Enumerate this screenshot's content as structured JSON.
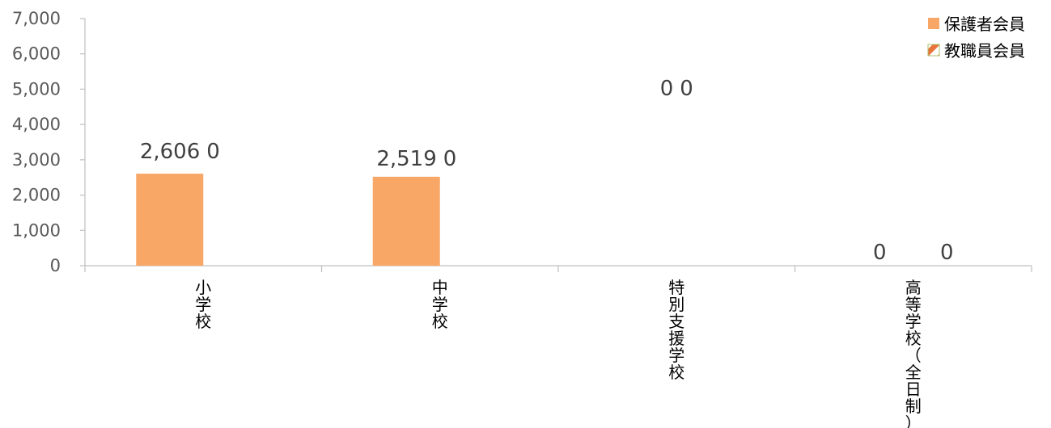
{
  "chart_data": {
    "type": "bar",
    "categories": [
      "小学校",
      "中学校",
      "特別支援学校",
      "高等学校（全日制）"
    ],
    "series": [
      {
        "name": "保護者会員",
        "values": [
          2606,
          2519,
          0,
          0
        ],
        "color": "#F9A766",
        "pattern": "solid"
      },
      {
        "name": "教職員会員",
        "values": [
          0,
          0,
          0,
          0
        ],
        "color": "#E8743B",
        "pattern": "diagonal-stripes"
      }
    ],
    "ylim": [
      0,
      7000
    ],
    "yticks": [
      0,
      1000,
      2000,
      3000,
      4000,
      5000,
      6000,
      7000
    ],
    "ytick_labels": [
      "0",
      "1,000",
      "2,000",
      "3,000",
      "4,000",
      "5,000",
      "6,000",
      "7,000"
    ],
    "grid": false,
    "legend_position": "top-right"
  }
}
